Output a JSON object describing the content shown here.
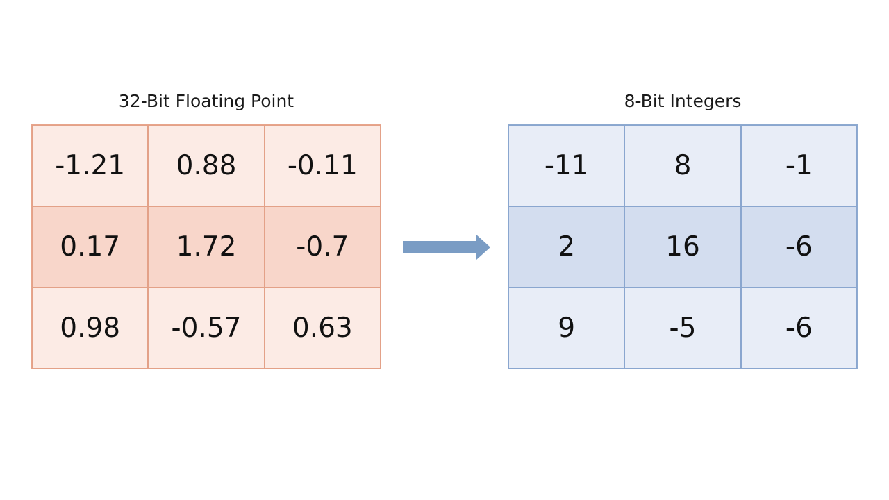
{
  "left_matrix": {
    "title": "32-Bit Floating Point",
    "rows": [
      [
        "-1.21",
        "0.88",
        "-0.11"
      ],
      [
        "0.17",
        "1.72",
        "-0.7"
      ],
      [
        "0.98",
        "-0.57",
        "0.63"
      ]
    ],
    "colors": {
      "cell_fill": "#fcebe5",
      "highlight_row_fill": "#f8d6ca",
      "border": "#e3a188"
    }
  },
  "right_matrix": {
    "title": "8-Bit Integers",
    "rows": [
      [
        "-11",
        "8",
        "-1"
      ],
      [
        "2",
        "16",
        "-6"
      ],
      [
        "9",
        "-5",
        "-6"
      ]
    ],
    "colors": {
      "cell_fill": "#e8edf7",
      "highlight_row_fill": "#d3ddef",
      "border": "#8aa6cf"
    }
  },
  "arrow": {
    "icon": "right-arrow-icon",
    "color": "#7a9cc4"
  }
}
